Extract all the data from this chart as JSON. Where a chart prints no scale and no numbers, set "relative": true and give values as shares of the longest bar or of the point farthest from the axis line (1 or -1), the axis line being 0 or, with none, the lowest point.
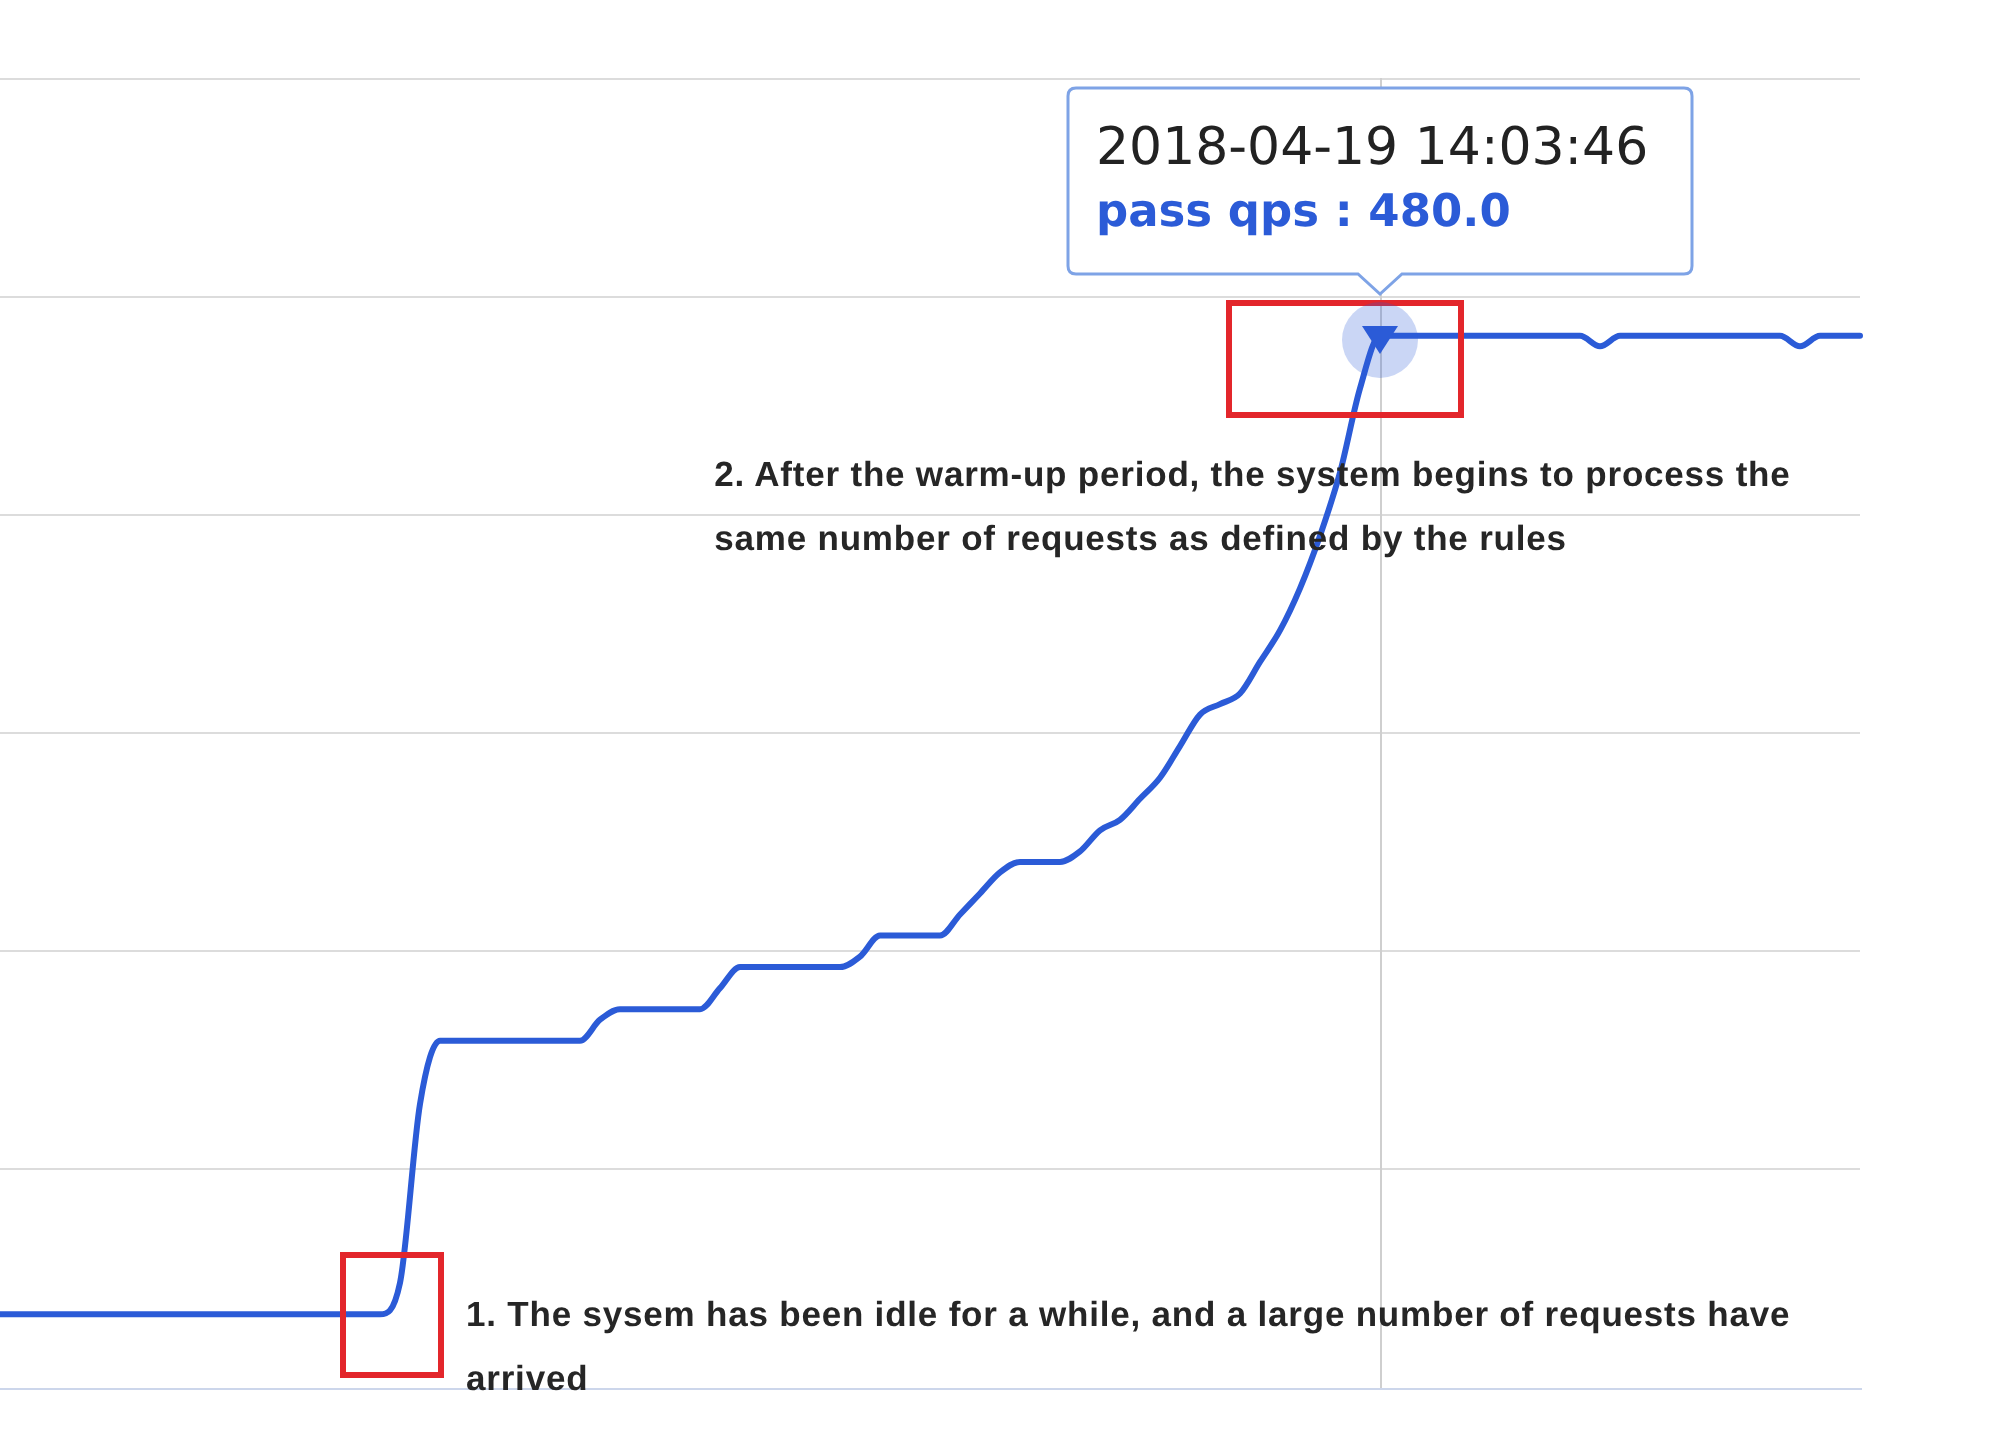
{
  "chart_data": {
    "type": "line",
    "relative": true,
    "categories": [
      null,
      null,
      null,
      null,
      null,
      null,
      null,
      null,
      null,
      null,
      null,
      null,
      null,
      null,
      null,
      null,
      null,
      null,
      null,
      null,
      null,
      null,
      null,
      null,
      null,
      null,
      null,
      null,
      null,
      null,
      null,
      null,
      null,
      null,
      null,
      null,
      null,
      null,
      null,
      null,
      null,
      null,
      null,
      null,
      null,
      null,
      null,
      null,
      null,
      null,
      null,
      null,
      null,
      null,
      null,
      null,
      null,
      null,
      null,
      null,
      null,
      null,
      null,
      null,
      null,
      null,
      null,
      null,
      null,
      null,
      null,
      null,
      null,
      null,
      null,
      null,
      null,
      null,
      null,
      null,
      null,
      null,
      null,
      null,
      null,
      null,
      null,
      null,
      null,
      null,
      null,
      null,
      null,
      null
    ],
    "values": [
      0.07,
      0.07,
      0.07,
      0.07,
      0.07,
      0.07,
      0.07,
      0.07,
      0.07,
      0.07,
      0.07,
      0.07,
      0.07,
      0.07,
      0.07,
      0.07,
      0.07,
      0.07,
      0.07,
      0.07,
      0.1,
      0.27,
      0.33,
      0.33,
      0.33,
      0.33,
      0.33,
      0.33,
      0.33,
      0.33,
      0.35,
      0.36,
      0.36,
      0.36,
      0.36,
      0.36,
      0.38,
      0.4,
      0.4,
      0.4,
      0.4,
      0.4,
      0.4,
      0.41,
      0.43,
      0.43,
      0.43,
      0.43,
      0.45,
      0.47,
      0.49,
      0.5,
      0.5,
      0.5,
      0.51,
      0.53,
      0.54,
      0.56,
      0.58,
      0.61,
      0.64,
      0.65,
      0.66,
      0.69,
      0.72,
      0.76,
      0.81,
      0.87,
      0.95,
      1,
      1,
      1,
      1,
      1,
      1,
      1,
      1,
      1,
      1,
      1,
      0.99,
      1,
      1,
      1,
      1,
      1,
      1,
      1,
      1,
      1,
      0.99,
      1,
      1,
      1
    ],
    "color": "#2b5bd7",
    "grid": "y",
    "tick_labels": false,
    "annotations": [
      "2018-04-19 14:03:46\npass qps : 480.0",
      "1. The sysem has been idle for a while, and a large number of requests have arrived",
      "2. After the warm-up period, the system begins to process the same number of requests as defined by the rules"
    ]
  }
}
